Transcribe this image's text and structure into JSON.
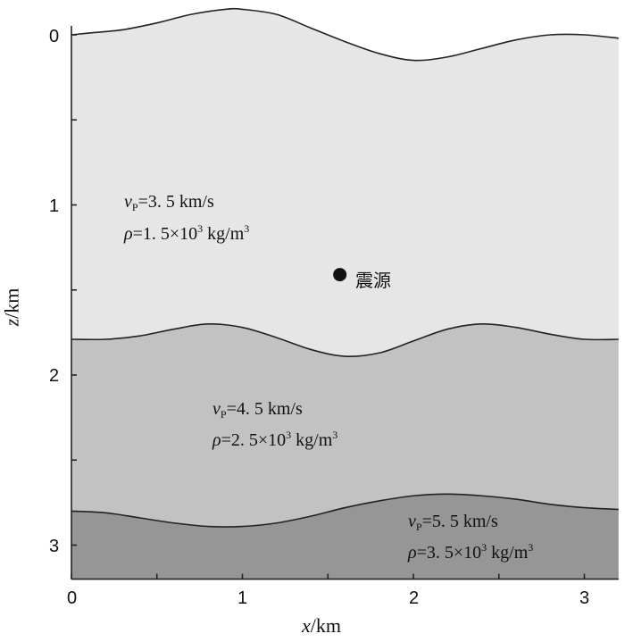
{
  "x_axis": {
    "title_var": "x",
    "title_unit": "/km",
    "ticks": [
      "0",
      "1",
      "2",
      "3"
    ]
  },
  "z_axis": {
    "title_var": "z",
    "title_unit": "/km",
    "ticks": [
      "0",
      "1",
      "2",
      "3"
    ]
  },
  "layers": [
    {
      "vp_sym": "v",
      "vp_sub": "P",
      "vp_value": "=3. 5 km/s",
      "rho_sym": "ρ",
      "rho_value": "=1. 5×10",
      "rho_exp": "3",
      "rho_unit": " kg/m",
      "rho_unit_exp": "3",
      "color": "#e6e6e6"
    },
    {
      "vp_sym": "v",
      "vp_sub": "P",
      "vp_value": "=4. 5 km/s",
      "rho_sym": "ρ",
      "rho_value": "=2. 5×10",
      "rho_exp": "3",
      "rho_unit": " kg/m",
      "rho_unit_exp": "3",
      "color": "#c2c2c2"
    },
    {
      "vp_sym": "v",
      "vp_sub": "P",
      "vp_value": "=5. 5 km/s",
      "rho_sym": "ρ",
      "rho_value": "=3. 5×10",
      "rho_exp": "3",
      "rho_unit": " kg/m",
      "rho_unit_exp": "3",
      "color": "#969696"
    }
  ],
  "source": {
    "label": "震源",
    "x_km": 1.57,
    "z_km": 1.41
  },
  "interfaces_km": {
    "surface": [
      [
        0,
        0.0
      ],
      [
        0.1,
        -0.01
      ],
      [
        0.3,
        -0.03
      ],
      [
        0.5,
        -0.07
      ],
      [
        0.7,
        -0.12
      ],
      [
        0.9,
        -0.15
      ],
      [
        1.0,
        -0.15
      ],
      [
        1.2,
        -0.12
      ],
      [
        1.4,
        -0.04
      ],
      [
        1.6,
        0.04
      ],
      [
        1.8,
        0.11
      ],
      [
        2.0,
        0.15
      ],
      [
        2.2,
        0.13
      ],
      [
        2.4,
        0.08
      ],
      [
        2.6,
        0.03
      ],
      [
        2.8,
        0.0
      ],
      [
        3.0,
        0.0
      ],
      [
        3.2,
        0.02
      ]
    ],
    "boundary_1": [
      [
        0,
        1.79
      ],
      [
        0.2,
        1.79
      ],
      [
        0.4,
        1.77
      ],
      [
        0.6,
        1.73
      ],
      [
        0.8,
        1.7
      ],
      [
        1.0,
        1.72
      ],
      [
        1.2,
        1.78
      ],
      [
        1.4,
        1.85
      ],
      [
        1.6,
        1.89
      ],
      [
        1.8,
        1.87
      ],
      [
        2.0,
        1.8
      ],
      [
        2.2,
        1.73
      ],
      [
        2.4,
        1.7
      ],
      [
        2.6,
        1.72
      ],
      [
        2.8,
        1.76
      ],
      [
        3.0,
        1.79
      ],
      [
        3.2,
        1.79
      ]
    ],
    "boundary_2": [
      [
        0,
        2.8
      ],
      [
        0.2,
        2.81
      ],
      [
        0.4,
        2.84
      ],
      [
        0.6,
        2.87
      ],
      [
        0.8,
        2.89
      ],
      [
        1.0,
        2.89
      ],
      [
        1.2,
        2.87
      ],
      [
        1.4,
        2.83
      ],
      [
        1.6,
        2.78
      ],
      [
        1.8,
        2.74
      ],
      [
        2.0,
        2.71
      ],
      [
        2.2,
        2.7
      ],
      [
        2.4,
        2.71
      ],
      [
        2.6,
        2.73
      ],
      [
        2.8,
        2.76
      ],
      [
        3.0,
        2.78
      ],
      [
        3.2,
        2.79
      ]
    ]
  },
  "domain_km": {
    "x": [
      0,
      3.2
    ],
    "z_bottom": 3.2
  }
}
